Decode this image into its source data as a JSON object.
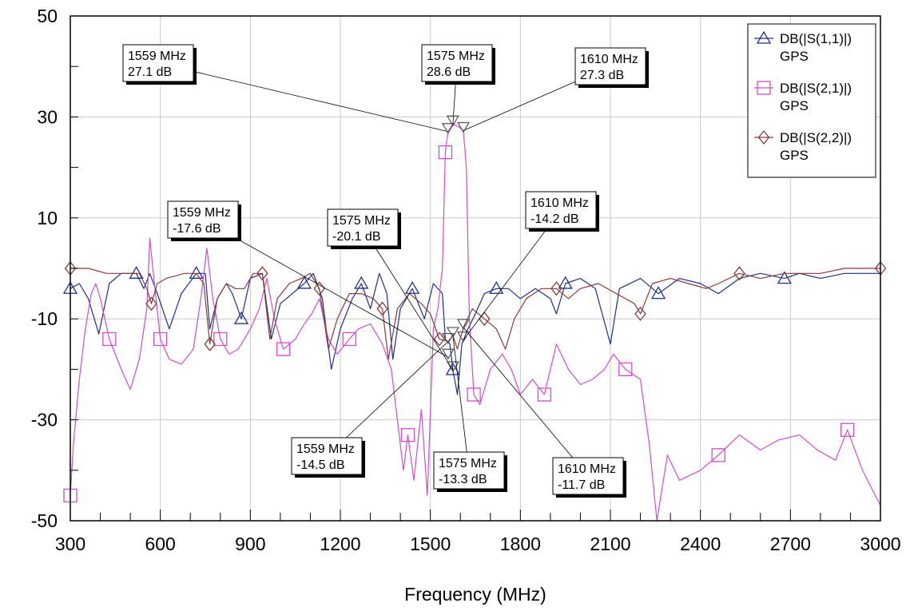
{
  "chart_data": {
    "type": "line",
    "title": "",
    "xlabel": "Frequency (MHz)",
    "ylabel": "",
    "xlim": [
      300,
      3000
    ],
    "ylim": [
      -50,
      50
    ],
    "x_ticks": [
      300,
      600,
      900,
      1200,
      1500,
      1800,
      2100,
      2400,
      2700,
      3000
    ],
    "y_ticks": [
      50,
      30,
      10,
      -10,
      -30,
      -50
    ],
    "grid": true,
    "legend_position": "top-right",
    "series": [
      {
        "name": "DB(|S(1,1)|)",
        "sub": "GPS",
        "color": "#1f2f8f",
        "marker": "triangle",
        "points": [
          [
            300,
            -4
          ],
          [
            330,
            -3
          ],
          [
            360,
            -6
          ],
          [
            395,
            -13
          ],
          [
            430,
            -3
          ],
          [
            470,
            -1
          ],
          [
            520,
            -1
          ],
          [
            545,
            -4
          ],
          [
            565,
            -1
          ],
          [
            590,
            -5
          ],
          [
            630,
            -12
          ],
          [
            670,
            -5
          ],
          [
            720,
            -1
          ],
          [
            750,
            -1
          ],
          [
            765,
            -12
          ],
          [
            790,
            -6
          ],
          [
            820,
            -3
          ],
          [
            840,
            -5
          ],
          [
            870,
            -10
          ],
          [
            900,
            -2
          ],
          [
            940,
            -1
          ],
          [
            970,
            -14
          ],
          [
            1000,
            -7
          ],
          [
            1040,
            -5
          ],
          [
            1080,
            -3
          ],
          [
            1110,
            -1
          ],
          [
            1140,
            -6
          ],
          [
            1170,
            -20
          ],
          [
            1200,
            -12
          ],
          [
            1240,
            -6
          ],
          [
            1270,
            -3
          ],
          [
            1300,
            -8
          ],
          [
            1330,
            -1
          ],
          [
            1355,
            -5
          ],
          [
            1375,
            -18
          ],
          [
            1400,
            -8
          ],
          [
            1440,
            -4
          ],
          [
            1480,
            -10
          ],
          [
            1510,
            -3
          ],
          [
            1540,
            -5
          ],
          [
            1550,
            -14
          ],
          [
            1565,
            -15
          ],
          [
            1575,
            -20.1
          ],
          [
            1590,
            -25
          ],
          [
            1605,
            -15
          ],
          [
            1625,
            -12
          ],
          [
            1650,
            -9
          ],
          [
            1680,
            -5
          ],
          [
            1720,
            -4
          ],
          [
            1760,
            -4
          ],
          [
            1800,
            -6
          ],
          [
            1850,
            -4
          ],
          [
            1900,
            -6
          ],
          [
            1920,
            -9
          ],
          [
            1950,
            -3
          ],
          [
            2000,
            -2
          ],
          [
            2050,
            -4
          ],
          [
            2100,
            -15
          ],
          [
            2130,
            -4
          ],
          [
            2200,
            -2
          ],
          [
            2260,
            -5
          ],
          [
            2330,
            -2
          ],
          [
            2400,
            -3
          ],
          [
            2460,
            -5
          ],
          [
            2530,
            -2
          ],
          [
            2600,
            -1
          ],
          [
            2680,
            -2
          ],
          [
            2730,
            -1
          ],
          [
            2800,
            -2
          ],
          [
            2880,
            -1
          ],
          [
            2950,
            -1
          ],
          [
            3000,
            -1
          ]
        ]
      },
      {
        "name": "DB(|S(2,1)|)",
        "sub": "GPS",
        "color": "#d24bd2",
        "marker": "square",
        "points": [
          [
            300,
            -45
          ],
          [
            310,
            -35
          ],
          [
            330,
            -22
          ],
          [
            350,
            -12
          ],
          [
            370,
            -5
          ],
          [
            385,
            -3
          ],
          [
            400,
            -6
          ],
          [
            430,
            -14
          ],
          [
            470,
            -20
          ],
          [
            500,
            -24
          ],
          [
            530,
            -18
          ],
          [
            555,
            -8
          ],
          [
            565,
            6
          ],
          [
            575,
            0
          ],
          [
            600,
            -14
          ],
          [
            630,
            -18
          ],
          [
            670,
            -19
          ],
          [
            710,
            -16
          ],
          [
            735,
            -6
          ],
          [
            755,
            4
          ],
          [
            775,
            -6
          ],
          [
            800,
            -14
          ],
          [
            830,
            -17
          ],
          [
            860,
            -16
          ],
          [
            900,
            -12
          ],
          [
            930,
            -8
          ],
          [
            955,
            -2
          ],
          [
            980,
            -10
          ],
          [
            1010,
            -16
          ],
          [
            1050,
            -14
          ],
          [
            1080,
            -11
          ],
          [
            1105,
            -9
          ],
          [
            1130,
            -6
          ],
          [
            1160,
            -14
          ],
          [
            1190,
            -17
          ],
          [
            1230,
            -14
          ],
          [
            1260,
            -12
          ],
          [
            1300,
            -11
          ],
          [
            1340,
            -15
          ],
          [
            1370,
            -20
          ],
          [
            1390,
            -30
          ],
          [
            1410,
            -40
          ],
          [
            1425,
            -33
          ],
          [
            1445,
            -42
          ],
          [
            1470,
            -28
          ],
          [
            1490,
            -45
          ],
          [
            1510,
            -12
          ],
          [
            1525,
            -8
          ],
          [
            1540,
            0
          ],
          [
            1550,
            23
          ],
          [
            1559,
            27.1
          ],
          [
            1575,
            28.6
          ],
          [
            1595,
            28
          ],
          [
            1610,
            27.3
          ],
          [
            1620,
            20
          ],
          [
            1630,
            -10
          ],
          [
            1645,
            -25
          ],
          [
            1665,
            -27
          ],
          [
            1700,
            -20
          ],
          [
            1740,
            -17
          ],
          [
            1770,
            -20
          ],
          [
            1800,
            -25
          ],
          [
            1840,
            -22
          ],
          [
            1880,
            -25
          ],
          [
            1920,
            -15
          ],
          [
            1960,
            -20
          ],
          [
            2000,
            -23
          ],
          [
            2040,
            -22
          ],
          [
            2080,
            -20
          ],
          [
            2110,
            -17
          ],
          [
            2150,
            -20
          ],
          [
            2200,
            -22
          ],
          [
            2230,
            -35
          ],
          [
            2255,
            -50
          ],
          [
            2290,
            -37
          ],
          [
            2330,
            -42
          ],
          [
            2400,
            -40
          ],
          [
            2460,
            -37
          ],
          [
            2530,
            -33
          ],
          [
            2600,
            -36
          ],
          [
            2660,
            -34
          ],
          [
            2730,
            -33
          ],
          [
            2790,
            -36
          ],
          [
            2850,
            -38
          ],
          [
            2890,
            -32
          ],
          [
            2940,
            -40
          ],
          [
            3000,
            -47
          ]
        ]
      },
      {
        "name": "DB(|S(2,2)|)",
        "sub": "GPS",
        "color": "#8b3a3a",
        "marker": "diamond",
        "points": [
          [
            300,
            0
          ],
          [
            360,
            0
          ],
          [
            420,
            -1
          ],
          [
            480,
            -1
          ],
          [
            530,
            -1
          ],
          [
            555,
            -4
          ],
          [
            570,
            -7
          ],
          [
            590,
            -3
          ],
          [
            620,
            -2
          ],
          [
            680,
            -1
          ],
          [
            720,
            -1
          ],
          [
            745,
            -3
          ],
          [
            765,
            -15
          ],
          [
            790,
            -6
          ],
          [
            820,
            -3
          ],
          [
            850,
            -4
          ],
          [
            880,
            -4
          ],
          [
            910,
            -1
          ],
          [
            940,
            -1
          ],
          [
            965,
            -14
          ],
          [
            990,
            -6
          ],
          [
            1030,
            -3
          ],
          [
            1070,
            -2
          ],
          [
            1100,
            -1
          ],
          [
            1130,
            -4
          ],
          [
            1160,
            -16
          ],
          [
            1190,
            -10
          ],
          [
            1230,
            -5
          ],
          [
            1270,
            -5
          ],
          [
            1310,
            -6
          ],
          [
            1340,
            -8
          ],
          [
            1360,
            -18
          ],
          [
            1390,
            -8
          ],
          [
            1430,
            -5
          ],
          [
            1470,
            -7
          ],
          [
            1500,
            -9
          ],
          [
            1530,
            -14
          ],
          [
            1559,
            -14.5
          ],
          [
            1575,
            -13.3
          ],
          [
            1590,
            -16
          ],
          [
            1610,
            -11.7
          ],
          [
            1640,
            -8
          ],
          [
            1680,
            -10
          ],
          [
            1720,
            -12
          ],
          [
            1750,
            -16
          ],
          [
            1780,
            -10
          ],
          [
            1820,
            -6
          ],
          [
            1870,
            -4
          ],
          [
            1920,
            -4
          ],
          [
            1960,
            -6
          ],
          [
            2000,
            -4
          ],
          [
            2060,
            -3
          ],
          [
            2120,
            -5
          ],
          [
            2180,
            -7
          ],
          [
            2200,
            -9
          ],
          [
            2240,
            -3
          ],
          [
            2300,
            -2
          ],
          [
            2360,
            -3
          ],
          [
            2420,
            -4
          ],
          [
            2460,
            -3
          ],
          [
            2530,
            -1
          ],
          [
            2600,
            -2
          ],
          [
            2680,
            -1
          ],
          [
            2730,
            -1
          ],
          [
            2800,
            -1
          ],
          [
            2880,
            0
          ],
          [
            3000,
            0
          ]
        ]
      }
    ],
    "markers": [
      {
        "series": 1,
        "x": 1559,
        "y": 27.1,
        "label1": "1559 MHz",
        "label2": "27.1 dB"
      },
      {
        "series": 1,
        "x": 1575,
        "y": 28.6,
        "label1": "1575 MHz",
        "label2": "28.6 dB"
      },
      {
        "series": 1,
        "x": 1610,
        "y": 27.3,
        "label1": "1610 MHz",
        "label2": "27.3 dB"
      },
      {
        "series": 0,
        "x": 1559,
        "y": -17.6,
        "label1": "1559 MHz",
        "label2": "-17.6 dB"
      },
      {
        "series": 0,
        "x": 1575,
        "y": -20.1,
        "label1": "1575 MHz",
        "label2": "-20.1 dB"
      },
      {
        "series": 0,
        "x": 1610,
        "y": -14.2,
        "label1": "1610 MHz",
        "label2": "-14.2 dB"
      },
      {
        "series": 2,
        "x": 1559,
        "y": -14.5,
        "label1": "1559 MHz",
        "label2": "-14.5 dB"
      },
      {
        "series": 2,
        "x": 1575,
        "y": -13.3,
        "label1": "1575 MHz",
        "label2": "-13.3 dB"
      },
      {
        "series": 2,
        "x": 1610,
        "y": -11.7,
        "label1": "1610 MHz",
        "label2": "-11.7 dB"
      }
    ]
  }
}
